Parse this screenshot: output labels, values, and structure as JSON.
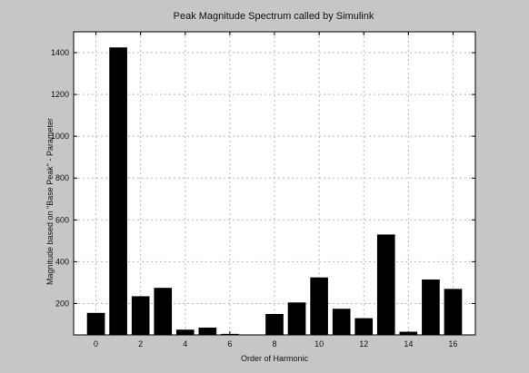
{
  "chart_data": {
    "type": "bar",
    "title": "Peak Magnitude Spectrum called by Simulink",
    "xlabel": "Order of Harmonic",
    "ylabel": "Magnitude based on \"Base Peak\" - Parameter",
    "categories": [
      0,
      1,
      2,
      3,
      4,
      5,
      6,
      7,
      8,
      9,
      10,
      11,
      12,
      13,
      14,
      15,
      16
    ],
    "values": [
      155,
      1425,
      235,
      275,
      75,
      85,
      55,
      0,
      150,
      205,
      325,
      175,
      130,
      530,
      65,
      315,
      270
    ],
    "xlim": [
      -1,
      17
    ],
    "ylim": [
      50,
      1500
    ],
    "x_ticks": [
      0,
      2,
      4,
      6,
      8,
      10,
      12,
      14,
      16
    ],
    "y_ticks": [
      200,
      400,
      600,
      800,
      1000,
      1200,
      1400
    ],
    "grid": true,
    "colors": {
      "bar": "#000000",
      "background": "#c6c6c6",
      "plot_area": "#ffffff",
      "grid": "#b8b8b8"
    }
  }
}
